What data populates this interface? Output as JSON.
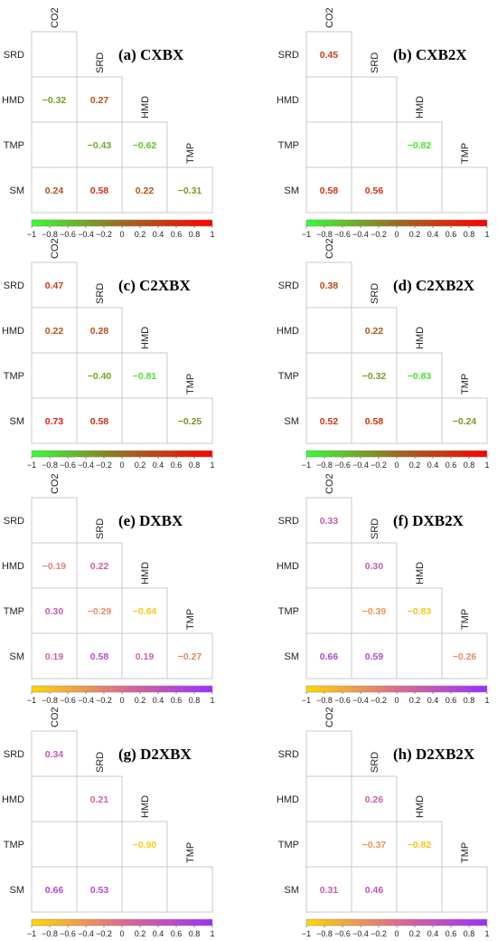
{
  "palettes": {
    "green_red": [
      "#33ff33",
      "#9c6b1e",
      "#ff0000"
    ],
    "yellow_purple": [
      "#ffd700",
      "#e06a8c",
      "#9b30ff"
    ]
  },
  "chart_data": [
    {
      "type": "heatmap",
      "title": "(a) CXBX",
      "palette": "green_red",
      "variables": [
        "CO2",
        "SRD",
        "HMD",
        "TMP",
        "SM"
      ],
      "cells": [
        {
          "row": "SRD",
          "col": "CO2",
          "value": null
        },
        {
          "row": "HMD",
          "col": "CO2",
          "value": "-0.32"
        },
        {
          "row": "HMD",
          "col": "SRD",
          "value": "0.27"
        },
        {
          "row": "TMP",
          "col": "CO2",
          "value": null
        },
        {
          "row": "TMP",
          "col": "SRD",
          "value": "-0.43"
        },
        {
          "row": "TMP",
          "col": "HMD",
          "value": "-0.62"
        },
        {
          "row": "SM",
          "col": "CO2",
          "value": "0.24"
        },
        {
          "row": "SM",
          "col": "SRD",
          "value": "0.58"
        },
        {
          "row": "SM",
          "col": "HMD",
          "value": "0.22"
        },
        {
          "row": "SM",
          "col": "TMP",
          "value": "-0.31"
        }
      ],
      "colorbar": {
        "range": [
          -1,
          1
        ],
        "ticks": [
          "-1",
          "-0.8",
          "-0.6",
          "-0.4",
          "-0.2",
          "0",
          "0.2",
          "0.4",
          "0.6",
          "0.8",
          "1"
        ]
      }
    },
    {
      "type": "heatmap",
      "title": "(b) CXB2X",
      "palette": "green_red",
      "variables": [
        "CO2",
        "SRD",
        "HMD",
        "TMP",
        "SM"
      ],
      "cells": [
        {
          "row": "SRD",
          "col": "CO2",
          "value": "0.45"
        },
        {
          "row": "HMD",
          "col": "CO2",
          "value": null
        },
        {
          "row": "HMD",
          "col": "SRD",
          "value": null
        },
        {
          "row": "TMP",
          "col": "CO2",
          "value": null
        },
        {
          "row": "TMP",
          "col": "SRD",
          "value": null
        },
        {
          "row": "TMP",
          "col": "HMD",
          "value": "-0.82"
        },
        {
          "row": "SM",
          "col": "CO2",
          "value": "0.58"
        },
        {
          "row": "SM",
          "col": "SRD",
          "value": "0.56"
        },
        {
          "row": "SM",
          "col": "HMD",
          "value": null
        },
        {
          "row": "SM",
          "col": "TMP",
          "value": null
        }
      ],
      "colorbar": {
        "range": [
          -1,
          1
        ],
        "ticks": [
          "-1",
          "-0.8",
          "-0.6",
          "-0.4",
          "-0.2",
          "0",
          "0.2",
          "0.4",
          "0.6",
          "0.8",
          "1"
        ]
      }
    },
    {
      "type": "heatmap",
      "title": "(c) C2XBX",
      "palette": "green_red",
      "variables": [
        "CO2",
        "SRD",
        "HMD",
        "TMP",
        "SM"
      ],
      "cells": [
        {
          "row": "SRD",
          "col": "CO2",
          "value": "0.47"
        },
        {
          "row": "HMD",
          "col": "CO2",
          "value": "0.22"
        },
        {
          "row": "HMD",
          "col": "SRD",
          "value": "0.28"
        },
        {
          "row": "TMP",
          "col": "CO2",
          "value": null
        },
        {
          "row": "TMP",
          "col": "SRD",
          "value": "-0.40"
        },
        {
          "row": "TMP",
          "col": "HMD",
          "value": "-0.81"
        },
        {
          "row": "SM",
          "col": "CO2",
          "value": "0.73"
        },
        {
          "row": "SM",
          "col": "SRD",
          "value": "0.58"
        },
        {
          "row": "SM",
          "col": "HMD",
          "value": null
        },
        {
          "row": "SM",
          "col": "TMP",
          "value": "-0.25"
        }
      ],
      "colorbar": {
        "range": [
          -1,
          1
        ],
        "ticks": [
          "-1",
          "-0.8",
          "-0.6",
          "-0.4",
          "-0.2",
          "0",
          "0.2",
          "0.4",
          "0.6",
          "0.8",
          "1"
        ]
      }
    },
    {
      "type": "heatmap",
      "title": "(d) C2XB2X",
      "palette": "green_red",
      "variables": [
        "CO2",
        "SRD",
        "HMD",
        "TMP",
        "SM"
      ],
      "cells": [
        {
          "row": "SRD",
          "col": "CO2",
          "value": "0.38"
        },
        {
          "row": "HMD",
          "col": "CO2",
          "value": null
        },
        {
          "row": "HMD",
          "col": "SRD",
          "value": "0.22"
        },
        {
          "row": "TMP",
          "col": "CO2",
          "value": null
        },
        {
          "row": "TMP",
          "col": "SRD",
          "value": "-0.32"
        },
        {
          "row": "TMP",
          "col": "HMD",
          "value": "-0.83"
        },
        {
          "row": "SM",
          "col": "CO2",
          "value": "0.52"
        },
        {
          "row": "SM",
          "col": "SRD",
          "value": "0.58"
        },
        {
          "row": "SM",
          "col": "HMD",
          "value": null
        },
        {
          "row": "SM",
          "col": "TMP",
          "value": "-0.24"
        }
      ],
      "colorbar": {
        "range": [
          -1,
          1
        ],
        "ticks": [
          "-1",
          "-0.8",
          "-0.6",
          "-0.4",
          "-0.2",
          "0",
          "0.2",
          "0.4",
          "0.6",
          "0.8",
          "1"
        ]
      }
    },
    {
      "type": "heatmap",
      "title": "(e) DXBX",
      "palette": "yellow_purple",
      "variables": [
        "CO2",
        "SRD",
        "HMD",
        "TMP",
        "SM"
      ],
      "cells": [
        {
          "row": "SRD",
          "col": "CO2",
          "value": null
        },
        {
          "row": "HMD",
          "col": "CO2",
          "value": "-0.19"
        },
        {
          "row": "HMD",
          "col": "SRD",
          "value": "0.22"
        },
        {
          "row": "TMP",
          "col": "CO2",
          "value": "0.30"
        },
        {
          "row": "TMP",
          "col": "SRD",
          "value": "-0.29"
        },
        {
          "row": "TMP",
          "col": "HMD",
          "value": "-0.84"
        },
        {
          "row": "SM",
          "col": "CO2",
          "value": "0.19"
        },
        {
          "row": "SM",
          "col": "SRD",
          "value": "0.58"
        },
        {
          "row": "SM",
          "col": "HMD",
          "value": "0.19"
        },
        {
          "row": "SM",
          "col": "TMP",
          "value": "-0.27"
        }
      ],
      "colorbar": {
        "range": [
          -1,
          1
        ],
        "ticks": [
          "-1",
          "-0.8",
          "-0.6",
          "-0.4",
          "-0.2",
          "0",
          "0.2",
          "0.4",
          "0.6",
          "0.8",
          "1"
        ]
      }
    },
    {
      "type": "heatmap",
      "title": "(f) DXB2X",
      "palette": "yellow_purple",
      "variables": [
        "CO2",
        "SRD",
        "HMD",
        "TMP",
        "SM"
      ],
      "cells": [
        {
          "row": "SRD",
          "col": "CO2",
          "value": "0.33"
        },
        {
          "row": "HMD",
          "col": "CO2",
          "value": null
        },
        {
          "row": "HMD",
          "col": "SRD",
          "value": "0.30"
        },
        {
          "row": "TMP",
          "col": "CO2",
          "value": null
        },
        {
          "row": "TMP",
          "col": "SRD",
          "value": "-0.39"
        },
        {
          "row": "TMP",
          "col": "HMD",
          "value": "-0.83"
        },
        {
          "row": "SM",
          "col": "CO2",
          "value": "0.66"
        },
        {
          "row": "SM",
          "col": "SRD",
          "value": "0.59"
        },
        {
          "row": "SM",
          "col": "HMD",
          "value": null
        },
        {
          "row": "SM",
          "col": "TMP",
          "value": "-0.26"
        }
      ],
      "colorbar": {
        "range": [
          -1,
          1
        ],
        "ticks": [
          "-1",
          "-0.8",
          "-0.6",
          "-0.4",
          "-0.2",
          "0",
          "0.2",
          "0.4",
          "0.6",
          "0.8",
          "1"
        ]
      }
    },
    {
      "type": "heatmap",
      "title": "(g) D2XBX",
      "palette": "yellow_purple",
      "variables": [
        "CO2",
        "SRD",
        "HMD",
        "TMP",
        "SM"
      ],
      "cells": [
        {
          "row": "SRD",
          "col": "CO2",
          "value": "0.34"
        },
        {
          "row": "HMD",
          "col": "CO2",
          "value": null
        },
        {
          "row": "HMD",
          "col": "SRD",
          "value": "0.21"
        },
        {
          "row": "TMP",
          "col": "CO2",
          "value": null
        },
        {
          "row": "TMP",
          "col": "SRD",
          "value": null
        },
        {
          "row": "TMP",
          "col": "HMD",
          "value": "-0.90"
        },
        {
          "row": "SM",
          "col": "CO2",
          "value": "0.66"
        },
        {
          "row": "SM",
          "col": "SRD",
          "value": "0.53"
        },
        {
          "row": "SM",
          "col": "HMD",
          "value": null
        },
        {
          "row": "SM",
          "col": "TMP",
          "value": null
        }
      ],
      "colorbar": {
        "range": [
          -1,
          1
        ],
        "ticks": [
          "-1",
          "-0.8",
          "-0.6",
          "-0.4",
          "-0.2",
          "0",
          "0.2",
          "0.4",
          "0.6",
          "0.8",
          "1"
        ]
      }
    },
    {
      "type": "heatmap",
      "title": "(h) D2XB2X",
      "palette": "yellow_purple",
      "variables": [
        "CO2",
        "SRD",
        "HMD",
        "TMP",
        "SM"
      ],
      "cells": [
        {
          "row": "SRD",
          "col": "CO2",
          "value": null
        },
        {
          "row": "HMD",
          "col": "CO2",
          "value": null
        },
        {
          "row": "HMD",
          "col": "SRD",
          "value": "0.26"
        },
        {
          "row": "TMP",
          "col": "CO2",
          "value": null
        },
        {
          "row": "TMP",
          "col": "SRD",
          "value": "-0.37"
        },
        {
          "row": "TMP",
          "col": "HMD",
          "value": "-0.82"
        },
        {
          "row": "SM",
          "col": "CO2",
          "value": "0.31"
        },
        {
          "row": "SM",
          "col": "SRD",
          "value": "0.46"
        },
        {
          "row": "SM",
          "col": "HMD",
          "value": null
        },
        {
          "row": "SM",
          "col": "TMP",
          "value": null
        }
      ],
      "colorbar": {
        "range": [
          -1,
          1
        ],
        "ticks": [
          "-1",
          "-0.8",
          "-0.6",
          "-0.4",
          "-0.2",
          "0",
          "0.2",
          "0.4",
          "0.6",
          "0.8",
          "1"
        ]
      }
    }
  ]
}
